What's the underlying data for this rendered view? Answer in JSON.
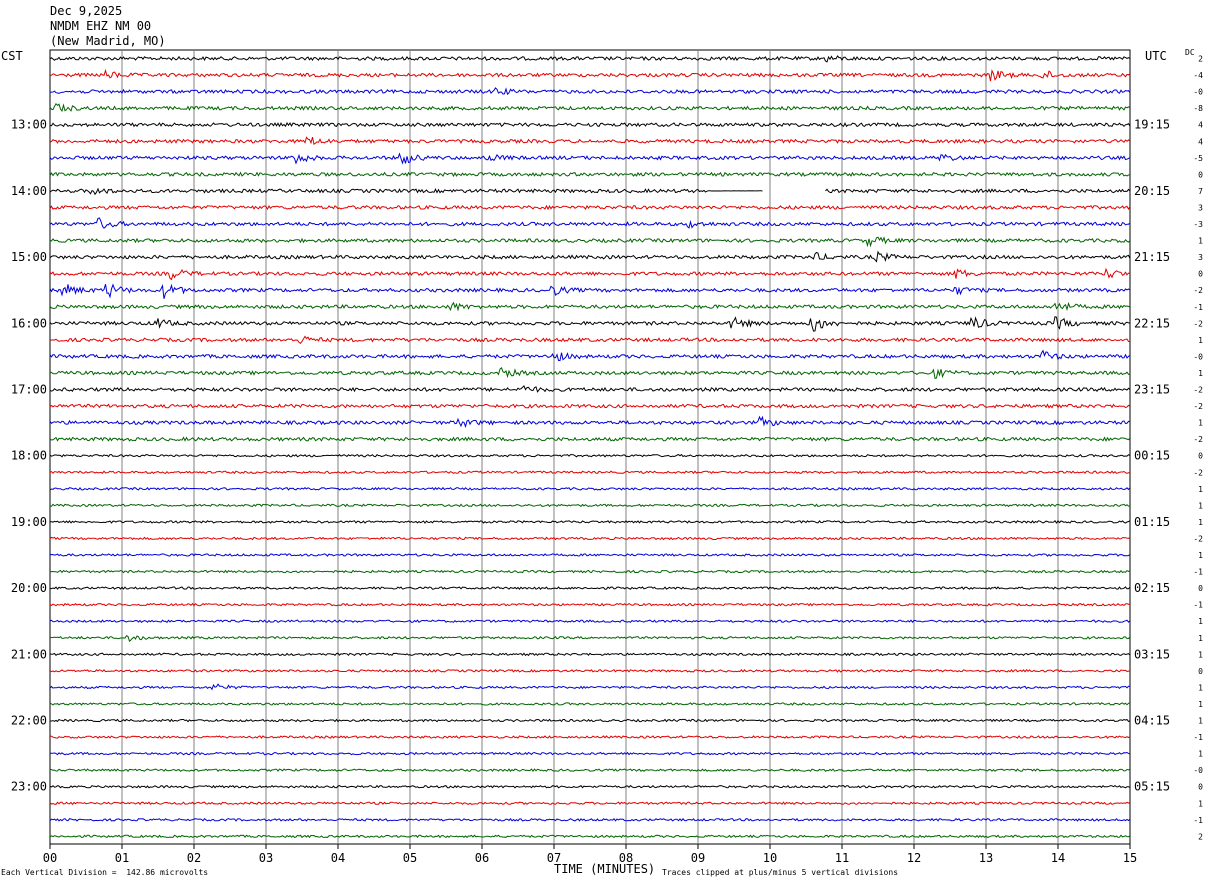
{
  "header": {
    "date": "Dec 9,2025",
    "station": "NMDM EHZ NM 00",
    "location": "(New Madrid, MO)"
  },
  "left_zone_label": "CST",
  "right_zone_label": "UTC",
  "dc_label": "DC",
  "footer": {
    "scale_note": "Each Vertical Division =  142.86 microvolts",
    "xlabel": "TIME (MINUTES)",
    "clip_note": "Traces clipped at plus/minus 5 vertical divisions"
  },
  "colors": {
    "cycle": [
      "#000000",
      "#e00000",
      "#0000d8",
      "#006400"
    ],
    "grid": "#808080"
  },
  "chart_data": {
    "type": "line",
    "title": "",
    "xlabel": "TIME (MINUTES)",
    "xlim": [
      0,
      15
    ],
    "x_ticks": [
      "00",
      "01",
      "02",
      "03",
      "04",
      "05",
      "06",
      "07",
      "08",
      "09",
      "10",
      "11",
      "12",
      "13",
      "14",
      "15"
    ],
    "rows_per_hour": 4,
    "minutes_per_row": 15,
    "row_count": 48,
    "left_hour_labels": [
      "13:00",
      "14:00",
      "15:00",
      "16:00",
      "17:00",
      "18:00",
      "19:00",
      "20:00",
      "21:00",
      "22:00",
      "23:00"
    ],
    "right_hour_labels": [
      "19:15",
      "20:15",
      "21:15",
      "22:15",
      "23:15",
      "00:15",
      "01:15",
      "02:15",
      "03:15",
      "04:15",
      "05:15"
    ],
    "first_labeled_row": 4,
    "dc_offsets": [
      "2",
      "-4",
      "-0",
      "-8",
      "4",
      "4",
      "-5",
      "0",
      "7",
      "3",
      "-3",
      "1",
      "3",
      "0",
      "-2",
      "-1",
      "-2",
      "1",
      "-0",
      "1",
      "-2",
      "-2",
      "1",
      "-2",
      "0",
      "-2",
      "1",
      "1",
      "1",
      "-2",
      "1",
      "-1",
      "0",
      "-1",
      "1",
      "1",
      "1",
      "0",
      "1",
      "1",
      "1",
      "-1",
      "1",
      "-0",
      "0",
      "1",
      "-1",
      "2"
    ],
    "gap": {
      "row": 8,
      "start_min": 9.9,
      "end_min": 10.75,
      "flatline_start_min": 9.15
    },
    "events": [
      {
        "row": 0,
        "min": 10.8,
        "amp": 2.5
      },
      {
        "row": 1,
        "min": 0.8,
        "amp": 3
      },
      {
        "row": 1,
        "min": 13.1,
        "amp": 5
      },
      {
        "row": 1,
        "min": 13.8,
        "amp": 4
      },
      {
        "row": 2,
        "min": 6.2,
        "amp": 3
      },
      {
        "row": 3,
        "min": 0.1,
        "amp": 4
      },
      {
        "row": 5,
        "min": 3.6,
        "amp": 4
      },
      {
        "row": 6,
        "min": 3.4,
        "amp": 6
      },
      {
        "row": 6,
        "min": 4.9,
        "amp": 6
      },
      {
        "row": 6,
        "min": 6.1,
        "amp": 3
      },
      {
        "row": 6,
        "min": 12.4,
        "amp": 3
      },
      {
        "row": 8,
        "min": 0.6,
        "amp": 3
      },
      {
        "row": 10,
        "min": 0.7,
        "amp": 5
      },
      {
        "row": 10,
        "min": 8.9,
        "amp": 2.5
      },
      {
        "row": 11,
        "min": 11.4,
        "amp": 4
      },
      {
        "row": 12,
        "min": 10.6,
        "amp": 4
      },
      {
        "row": 12,
        "min": 11.5,
        "amp": 4
      },
      {
        "row": 13,
        "min": 1.7,
        "amp": 5
      },
      {
        "row": 13,
        "min": 12.6,
        "amp": 4
      },
      {
        "row": 13,
        "min": 14.7,
        "amp": 4
      },
      {
        "row": 14,
        "min": 0.2,
        "amp": 6
      },
      {
        "row": 14,
        "min": 0.8,
        "amp": 7
      },
      {
        "row": 14,
        "min": 1.6,
        "amp": 7
      },
      {
        "row": 14,
        "min": 7.0,
        "amp": 4
      },
      {
        "row": 14,
        "min": 12.6,
        "amp": 3
      },
      {
        "row": 15,
        "min": 5.6,
        "amp": 3
      },
      {
        "row": 15,
        "min": 14.0,
        "amp": 5
      },
      {
        "row": 16,
        "min": 1.5,
        "amp": 4
      },
      {
        "row": 16,
        "min": 9.5,
        "amp": 5
      },
      {
        "row": 16,
        "min": 10.6,
        "amp": 9
      },
      {
        "row": 16,
        "min": 12.8,
        "amp": 7
      },
      {
        "row": 16,
        "min": 14.0,
        "amp": 5
      },
      {
        "row": 17,
        "min": 3.5,
        "amp": 3
      },
      {
        "row": 18,
        "min": 7.0,
        "amp": 5
      },
      {
        "row": 18,
        "min": 13.8,
        "amp": 5
      },
      {
        "row": 19,
        "min": 6.3,
        "amp": 4
      },
      {
        "row": 19,
        "min": 12.3,
        "amp": 4
      },
      {
        "row": 20,
        "min": 6.6,
        "amp": 3
      },
      {
        "row": 22,
        "min": 5.7,
        "amp": 4
      },
      {
        "row": 22,
        "min": 9.9,
        "amp": 4
      },
      {
        "row": 35,
        "min": 1.1,
        "amp": 3
      },
      {
        "row": 38,
        "min": 2.3,
        "amp": 3
      }
    ]
  }
}
